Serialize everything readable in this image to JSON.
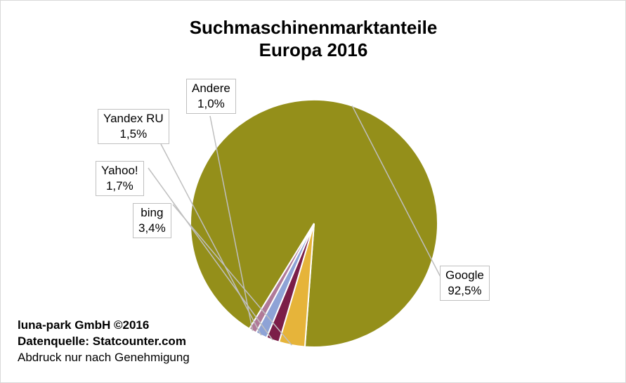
{
  "chart_data": {
    "type": "pie",
    "title": [
      "Suchmaschinenmarktanteile",
      "Europa 2016"
    ],
    "slices": [
      {
        "name": "Google",
        "value": 92.5,
        "label": "92,5%",
        "color": "#948f1a"
      },
      {
        "name": "bing",
        "value": 3.4,
        "label": "3,4%",
        "color": "#e6b43a"
      },
      {
        "name": "Yahoo!",
        "value": 1.7,
        "label": "1,7%",
        "color": "#7b1e48"
      },
      {
        "name": "Yandex RU",
        "value": 1.5,
        "label": "1,5%",
        "color": "#8ea3d6"
      },
      {
        "name": "Andere",
        "value": 1.0,
        "label": "1,0%",
        "color": "#b07a98"
      }
    ],
    "slice_border_color": "#ffffff",
    "leader_line_color": "#bfbfbf"
  },
  "credits": {
    "line1": "luna-park GmbH ©2016",
    "line2": "Datenquelle: Statcounter.com",
    "line3": "Abdruck nur nach Genehmigung"
  }
}
